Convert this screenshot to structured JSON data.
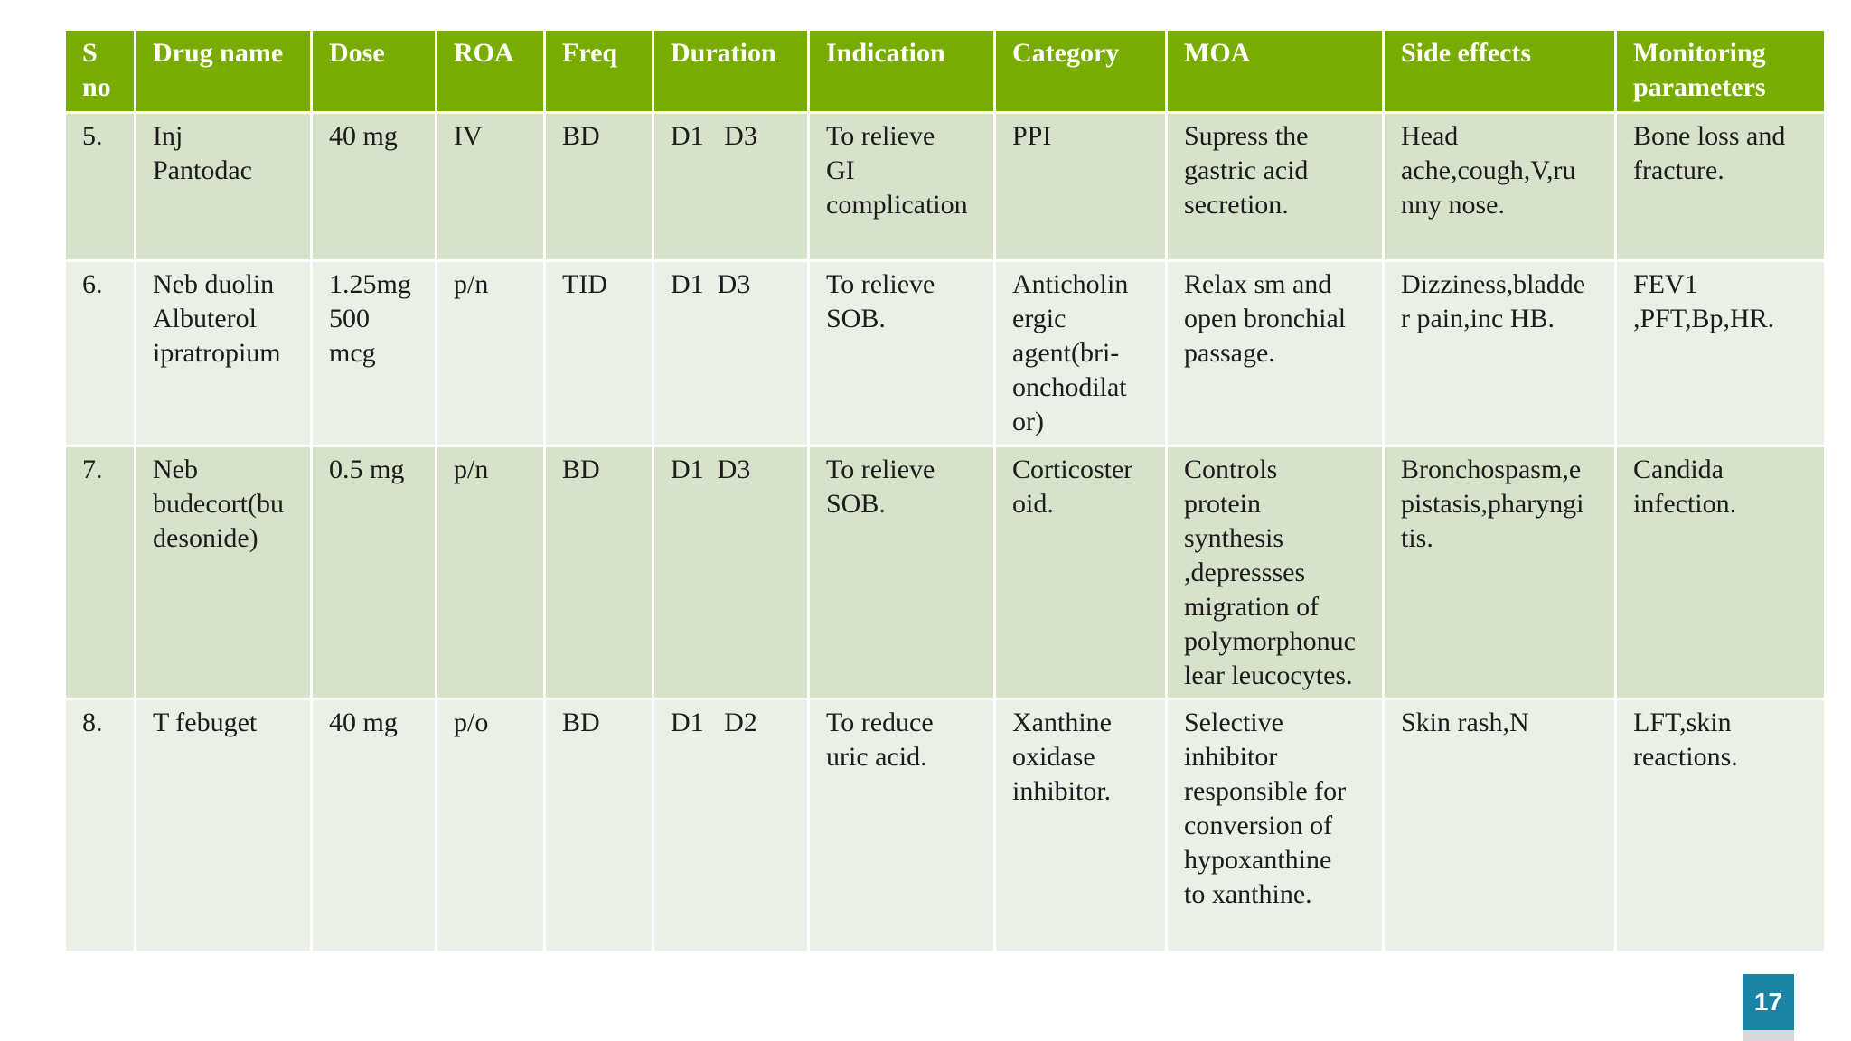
{
  "table": {
    "headers": [
      "S\nno",
      "Drug name",
      "Dose",
      "ROA",
      "Freq",
      "Duration",
      "Indication",
      "Category",
      "MOA",
      "Side effects",
      "Monitoring\nparameters"
    ],
    "rows": [
      [
        "5.",
        "Inj\nPantodac",
        "40 mg",
        "IV",
        "BD",
        "D1   D3",
        "To relieve\nGI\ncomplication",
        "PPI",
        "Supress the\ngastric acid\nsecretion.",
        "Head\nache,cough,V,ru\nnny nose.",
        "Bone loss and\nfracture."
      ],
      [
        "6.",
        "Neb duolin\nAlbuterol\nipratropium",
        "1.25mg\n500\nmcg",
        "p/n",
        "TID",
        "D1  D3",
        "To relieve\nSOB.",
        "Anticholin\nergic\nagent(bri-\nonchodilat\nor)",
        "Relax sm and\nopen bronchial\npassage.",
        "Dizziness,bladde\nr pain,inc HB.",
        "FEV1\n,PFT,Bp,HR."
      ],
      [
        "7.",
        "Neb\nbudecort(bu\ndesonide)",
        "0.5 mg",
        "p/n",
        "BD",
        "D1  D3",
        "To relieve\nSOB.",
        "Corticoster\noid.",
        "Controls\nprotein\nsynthesis\n,depressses\nmigration of\npolymorphonuc\nlear leucocytes.",
        "Bronchospasm,e\npistasis,pharyngi\ntis.",
        "Candida\ninfection."
      ],
      [
        "8.",
        "T febuget",
        "40 mg",
        "p/o",
        "BD",
        "D1   D2",
        "To reduce\nuric acid.",
        "Xanthine\noxidase\ninhibitor.",
        "Selective\ninhibitor\nresponsible for\nconversion of\nhypoxanthine\nto xanthine.",
        "Skin rash,N",
        "LFT,skin\nreactions."
      ]
    ]
  },
  "page_number": "17",
  "colors": {
    "header_bg": "#78ad00",
    "row_odd_bg": "#d6e3ca",
    "row_even_bg": "#ebf0e6",
    "badge_bg": "#1a84a4"
  }
}
